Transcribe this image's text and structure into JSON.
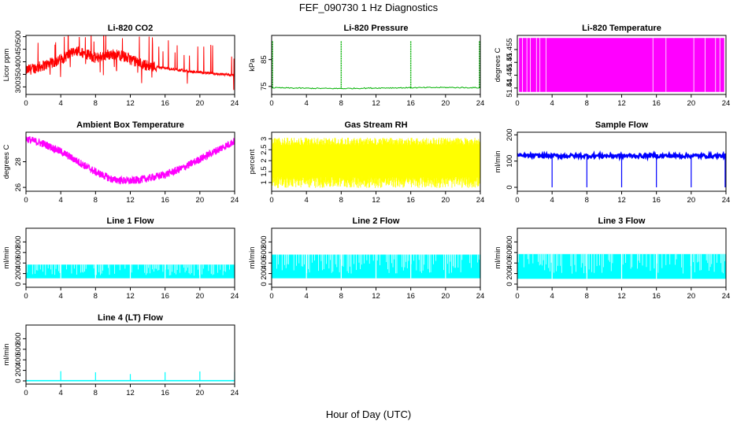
{
  "figure": {
    "title": "FEF_090730  1 Hz Diagnostics",
    "xlabel": "Hour of Day (UTC)"
  },
  "chart_data": [
    {
      "type": "line",
      "title": "Li-820 CO2",
      "ylabel": "Licor ppm",
      "color": "#ff0000",
      "xlim": [
        0,
        24
      ],
      "ylim": [
        270,
        505
      ],
      "xticks": [
        0,
        4,
        8,
        12,
        16,
        20,
        24
      ],
      "yticks": [
        300,
        350,
        400,
        450,
        500
      ],
      "x": [
        0,
        1,
        2,
        3,
        4,
        5,
        6,
        7,
        8,
        9,
        10,
        11,
        12,
        13,
        14,
        15,
        16,
        17,
        18,
        19,
        20,
        21,
        22,
        23,
        24
      ],
      "y": [
        365,
        375,
        385,
        395,
        410,
        430,
        440,
        430,
        415,
        425,
        430,
        425,
        410,
        395,
        385,
        380,
        375,
        370,
        365,
        360,
        358,
        355,
        352,
        350,
        345
      ]
    },
    {
      "type": "line",
      "title": "Li-820 Pressure",
      "ylabel": "kPa",
      "color": "#00b000",
      "xlim": [
        0,
        24
      ],
      "ylim": [
        72,
        94
      ],
      "xticks": [
        0,
        4,
        8,
        12,
        16,
        20,
        24
      ],
      "yticks": [
        75,
        85
      ],
      "x": [
        0,
        4,
        8,
        12,
        16,
        20,
        24
      ],
      "y": [
        74.5,
        74.3,
        74.2,
        74.4,
        74.5,
        74.6,
        74.5
      ],
      "spikes": [
        0.1,
        8,
        16,
        23.9
      ],
      "spike_value": 92
    },
    {
      "type": "line",
      "title": "Li-820 Temperature",
      "ylabel": "degrees C",
      "color": "#ff00ff",
      "xlim": [
        0,
        24
      ],
      "ylim": [
        51.4375,
        51.4605
      ],
      "xticks": [
        0,
        4,
        8,
        12,
        16,
        20,
        24
      ],
      "yticks": [
        51.44,
        51.445,
        51.45,
        51.455
      ],
      "x": [
        0,
        24
      ],
      "y": [
        51.4385,
        51.4595
      ]
    },
    {
      "type": "line",
      "title": "Ambient Box Temperature",
      "ylabel": "degrees C",
      "color": "#ff00ff",
      "xlim": [
        0,
        24
      ],
      "ylim": [
        25.7,
        30.3
      ],
      "xticks": [
        0,
        4,
        8,
        12,
        16,
        20,
        24
      ],
      "yticks": [
        26,
        28
      ],
      "x": [
        0,
        2,
        4,
        6,
        8,
        10,
        12,
        14,
        16,
        18,
        20,
        22,
        24
      ],
      "y": [
        29.8,
        29.4,
        28.8,
        28.0,
        27.2,
        26.6,
        26.5,
        26.7,
        27.0,
        27.5,
        28.2,
        28.9,
        29.6
      ]
    },
    {
      "type": "line",
      "title": "Gas Stream RH",
      "ylabel": "percent",
      "color": "#ffff00",
      "xlim": [
        0,
        24
      ],
      "ylim": [
        0.6,
        3.3
      ],
      "xticks": [
        0,
        4,
        8,
        12,
        16,
        20,
        24
      ],
      "yticks": [
        1.0,
        1.5,
        2.0,
        2.5,
        3.0
      ],
      "x": [
        0,
        24
      ],
      "y": [
        0.75,
        3.05
      ]
    },
    {
      "type": "line",
      "title": "Sample Flow",
      "ylabel": "ml/min",
      "color": "#0000ff",
      "xlim": [
        0,
        24
      ],
      "ylim": [
        -15,
        210
      ],
      "xticks": [
        0,
        4,
        8,
        12,
        16,
        20,
        24
      ],
      "yticks": [
        0,
        100,
        200
      ],
      "x": [
        0,
        24
      ],
      "y": [
        120,
        120
      ],
      "dips": [
        4,
        8,
        12,
        16,
        20,
        23.9
      ],
      "dip_value": 0
    },
    {
      "type": "line",
      "title": "Line 1 Flow",
      "ylabel": "ml/min",
      "color": "#00ffff",
      "xlim": [
        0,
        24
      ],
      "ylim": [
        -60,
        1060
      ],
      "xticks": [
        0,
        4,
        8,
        12,
        16,
        20,
        24
      ],
      "yticks": [
        0,
        200,
        400,
        600,
        800
      ],
      "x": [
        0,
        24
      ],
      "y": [
        110,
        370
      ]
    },
    {
      "type": "line",
      "title": "Line 2 Flow",
      "ylabel": "ml/min",
      "color": "#00ffff",
      "xlim": [
        0,
        24
      ],
      "ylim": [
        -60,
        1060
      ],
      "xticks": [
        0,
        4,
        8,
        12,
        16,
        20,
        24
      ],
      "yticks": [
        0,
        200,
        400,
        600,
        800
      ],
      "x": [
        0,
        24
      ],
      "y": [
        110,
        560
      ]
    },
    {
      "type": "line",
      "title": "Line 3 Flow",
      "ylabel": "ml/min",
      "color": "#00ffff",
      "xlim": [
        0,
        24
      ],
      "ylim": [
        -60,
        1060
      ],
      "xticks": [
        0,
        4,
        8,
        12,
        16,
        20,
        24
      ],
      "yticks": [
        0,
        200,
        400,
        600,
        800
      ],
      "x": [
        0,
        24
      ],
      "y": [
        100,
        570
      ]
    },
    {
      "type": "line",
      "title": "Line 4 (LT) Flow",
      "ylabel": "ml/min",
      "color": "#00ffff",
      "xlim": [
        0,
        24
      ],
      "ylim": [
        -60,
        1060
      ],
      "xticks": [
        0,
        4,
        8,
        12,
        16,
        20,
        24
      ],
      "yticks": [
        0,
        200,
        400,
        600,
        800
      ],
      "x": [
        0,
        24
      ],
      "y": [
        5,
        5
      ],
      "spikes": [
        4,
        8,
        12,
        16,
        20,
        24
      ],
      "spike_value": 170
    }
  ]
}
